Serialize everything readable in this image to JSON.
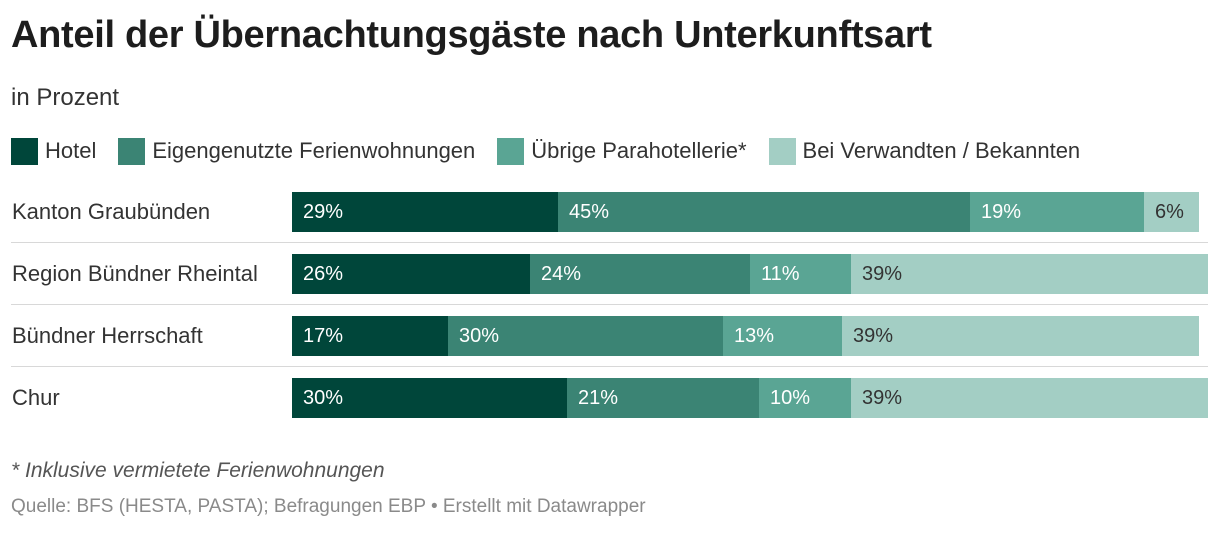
{
  "chart_data": {
    "type": "bar",
    "orientation": "horizontal",
    "stacked": true,
    "title": "Anteil der Übernachtungsgäste nach Unterkunftsart",
    "subtitle": "in Prozent",
    "categories": [
      "Kanton Graubünden",
      "Region Bündner Rheintal",
      "Bündner Herrschaft",
      "Chur"
    ],
    "series": [
      {
        "name": "Hotel",
        "color": "#00463a",
        "label_color": "#ffffff",
        "values": [
          29,
          26,
          17,
          30
        ],
        "value_labels": [
          "29%",
          "26%",
          "17%",
          "30%"
        ]
      },
      {
        "name": "Eigengenutzte Ferienwohnungen",
        "color": "#3b8474",
        "label_color": "#ffffff",
        "values": [
          45,
          24,
          30,
          21
        ],
        "value_labels": [
          "45%",
          "24%",
          "30%",
          "21%"
        ]
      },
      {
        "name": "Übrige Parahotellerie*",
        "color": "#5aa594",
        "label_color": "#ffffff",
        "values": [
          19,
          11,
          13,
          10
        ],
        "value_labels": [
          "19%",
          "11%",
          "13%",
          "10%"
        ]
      },
      {
        "name": "Bei Verwandten / Bekannten",
        "color": "#a3cec4",
        "label_color": "#333333",
        "values": [
          6,
          39,
          39,
          39
        ],
        "value_labels": [
          "6%",
          "39%",
          "39%",
          "39%"
        ]
      }
    ],
    "xlim": [
      0,
      100
    ],
    "grid": false,
    "legend": "top",
    "footnote": "* Inklusive vermietete Ferienwohnungen",
    "source": "Quelle: BFS (HESTA, PASTA); Befragungen EBP • Erstellt mit Datawrapper"
  }
}
